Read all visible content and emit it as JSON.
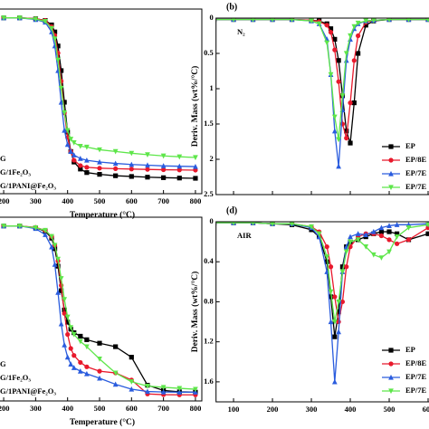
{
  "chart_data": [
    {
      "type": "line",
      "x": [
        200,
        250,
        300,
        330,
        350,
        360,
        370,
        380,
        390,
        400,
        410,
        420,
        440,
        460,
        500,
        550,
        600,
        650,
        700,
        750,
        800
      ],
      "series": [
        {
          "color": "#000000",
          "values": [
            100,
            100,
            99.5,
            98.5,
            96,
            92,
            84,
            70,
            52,
            35,
            24,
            18,
            14,
            12,
            11,
            10.2,
            9.8,
            9.4,
            9.1,
            8.9,
            8.75
          ]
        },
        {
          "name": "G",
          "color": "#e8192c",
          "values": [
            100,
            100,
            99.5,
            98.5,
            95,
            90,
            80,
            64,
            46,
            32,
            24,
            19,
            16,
            15,
            14.5,
            14.2,
            14,
            13.8,
            13.6,
            13.5,
            13.4
          ]
        },
        {
          "name": "G/1Fe₂O₃",
          "color": "#2a5cde",
          "values": [
            100,
            100,
            99,
            97.5,
            92,
            84,
            70,
            52,
            36,
            28,
            24,
            22,
            20,
            19,
            18,
            17.2,
            16.6,
            16.2,
            15.8,
            15.6,
            15.4
          ]
        },
        {
          "name": "G/1PANI@Fe₂O₃",
          "color": "#5ee64a",
          "values": [
            100,
            100,
            99.3,
            98,
            94,
            88,
            76,
            60,
            46,
            36,
            31,
            29,
            27,
            26.5,
            25,
            24,
            23,
            22.2,
            21.5,
            21,
            20.6
          ]
        }
      ],
      "xlim": [
        180,
        820
      ],
      "xticks": [
        200,
        300,
        400,
        500,
        600,
        700,
        800
      ],
      "ylim": [
        0,
        105
      ],
      "xlabel": "Temperature (°C)"
    },
    {
      "type": "line",
      "x": [
        50,
        100,
        150,
        200,
        250,
        300,
        320,
        340,
        350,
        360,
        370,
        380,
        390,
        400,
        410,
        420,
        440,
        460,
        500,
        550,
        600,
        650,
        700,
        750,
        800
      ],
      "series": [
        {
          "name": "EP",
          "color": "#000000",
          "values": [
            0.02,
            0.02,
            0.02,
            0.02,
            0.02,
            0.03,
            0.04,
            0.08,
            0.15,
            0.3,
            0.6,
            1.1,
            1.6,
            1.77,
            1.2,
            0.5,
            0.1,
            0.04,
            0.02,
            0.02,
            0.02,
            0.02,
            0.02,
            0.02,
            0.02
          ]
        },
        {
          "name": "EP/8E",
          "color": "#e8192c",
          "values": [
            0.02,
            0.02,
            0.02,
            0.02,
            0.02,
            0.03,
            0.05,
            0.1,
            0.2,
            0.45,
            0.9,
            1.5,
            1.7,
            1.2,
            0.6,
            0.25,
            0.06,
            0.03,
            0.02,
            0.02,
            0.02,
            0.02,
            0.02,
            0.02,
            0.02
          ]
        },
        {
          "name": "EP/7E",
          "color": "#2a5cde",
          "values": [
            0.02,
            0.02,
            0.02,
            0.02,
            0.02,
            0.04,
            0.08,
            0.3,
            0.8,
            1.6,
            2.1,
            1.3,
            0.6,
            0.3,
            0.15,
            0.08,
            0.04,
            0.03,
            0.02,
            0.02,
            0.02,
            0.02,
            0.02,
            0.02,
            0.02
          ]
        },
        {
          "name": "EP/7E",
          "color": "#5ee64a",
          "values": [
            0.02,
            0.02,
            0.02,
            0.02,
            0.02,
            0.04,
            0.08,
            0.35,
            0.8,
            1.4,
            1.72,
            1.1,
            0.5,
            0.25,
            0.12,
            0.07,
            0.04,
            0.03,
            0.02,
            0.02,
            0.02,
            0.02,
            0.02,
            0.02,
            0.02
          ]
        }
      ],
      "xlim": [
        55,
        800
      ],
      "xticks": [
        100,
        200,
        300,
        400,
        500,
        600,
        700,
        800
      ],
      "ylim": [
        0,
        2.5
      ],
      "yticks": [
        0,
        0.5,
        1,
        1.5,
        2,
        2.5
      ],
      "y_inverted": true,
      "ylabel": "Deriv. Mass (wt%/°C)",
      "label": "(b)",
      "annotation": "N₂"
    },
    {
      "type": "line",
      "x": [
        200,
        250,
        300,
        330,
        350,
        360,
        370,
        380,
        390,
        400,
        410,
        420,
        440,
        460,
        500,
        550,
        600,
        650,
        700,
        750,
        800
      ],
      "series": [
        {
          "color": "#000000",
          "values": [
            100,
            100,
            99,
            97,
            93,
            87,
            77,
            63,
            52,
            45,
            41,
            39,
            37,
            35,
            33,
            31,
            25,
            9,
            6,
            5.2,
            5
          ]
        },
        {
          "name": "G",
          "color": "#e8192c",
          "values": [
            100,
            100,
            99.2,
            97.5,
            94,
            89,
            80,
            66,
            50,
            38,
            30,
            26,
            22,
            19.5,
            17,
            16,
            12,
            4,
            3.6,
            3.5,
            3.5
          ]
        },
        {
          "name": "G/1Fe₂O₃",
          "color": "#2a5cde",
          "values": [
            100,
            100,
            98.5,
            95,
            88,
            78,
            62,
            44,
            32,
            25,
            21,
            19,
            17,
            15.5,
            13,
            9.5,
            6.7,
            5.4,
            5.1,
            5,
            5
          ]
        },
        {
          "name": "G/1PANI@Fe₂O₃",
          "color": "#5ee64a",
          "values": [
            100,
            100,
            99,
            97.5,
            94,
            89,
            81,
            70,
            58,
            48,
            42,
            38,
            34,
            31,
            24,
            16,
            11,
            8.5,
            7.8,
            7.2,
            6.7
          ]
        }
      ],
      "xlim": [
        180,
        820
      ],
      "xticks": [
        200,
        300,
        400,
        500,
        600,
        700,
        800
      ],
      "ylim": [
        0,
        105
      ],
      "xlabel": "Temperature (°C)"
    },
    {
      "type": "line",
      "x": [
        50,
        100,
        150,
        200,
        250,
        300,
        320,
        340,
        350,
        360,
        370,
        380,
        390,
        400,
        420,
        440,
        460,
        480,
        500,
        520,
        550,
        600,
        650,
        700,
        750,
        800
      ],
      "series": [
        {
          "name": "EP",
          "color": "#000000",
          "values": [
            0.01,
            0.01,
            0.01,
            0.02,
            0.03,
            0.08,
            0.15,
            0.4,
            0.75,
            1.15,
            0.9,
            0.45,
            0.25,
            0.2,
            0.18,
            0.15,
            0.12,
            0.1,
            0.1,
            0.12,
            0.18,
            0.12,
            0.03,
            0.02,
            0.02,
            0.02
          ]
        },
        {
          "name": "EP/8E",
          "color": "#e8192c",
          "values": [
            0.01,
            0.01,
            0.01,
            0.02,
            0.02,
            0.05,
            0.1,
            0.25,
            0.45,
            0.75,
            1.0,
            0.8,
            0.45,
            0.25,
            0.15,
            0.12,
            0.12,
            0.14,
            0.18,
            0.22,
            0.18,
            0.06,
            0.03,
            0.02,
            0.02,
            0.02
          ]
        },
        {
          "name": "EP/7E",
          "color": "#2a5cde",
          "values": [
            0.01,
            0.01,
            0.01,
            0.02,
            0.02,
            0.06,
            0.15,
            0.5,
            1.0,
            1.6,
            1.1,
            0.5,
            0.25,
            0.15,
            0.12,
            0.13,
            0.1,
            0.06,
            0.04,
            0.03,
            0.03,
            0.02,
            0.02,
            0.02,
            0.02,
            0.02
          ]
        },
        {
          "name": "EP/7E",
          "color": "#5ee64a",
          "values": [
            0.01,
            0.01,
            0.01,
            0.02,
            0.02,
            0.05,
            0.12,
            0.35,
            0.7,
            1.0,
            0.8,
            0.5,
            0.3,
            0.2,
            0.18,
            0.25,
            0.33,
            0.36,
            0.3,
            0.15,
            0.06,
            0.03,
            0.02,
            0.02,
            0.02,
            0.02
          ]
        }
      ],
      "xlim": [
        55,
        800
      ],
      "xticks": [
        100,
        200,
        300,
        400,
        500,
        600,
        700,
        800
      ],
      "ylim": [
        0,
        1.8
      ],
      "yticks": [
        0,
        0.4,
        0.8,
        1.2,
        1.6
      ],
      "y_inverted": true,
      "ylabel": "Deriv. Mass (wt%/°C)",
      "label": "(d)",
      "annotation": "AIR"
    }
  ]
}
